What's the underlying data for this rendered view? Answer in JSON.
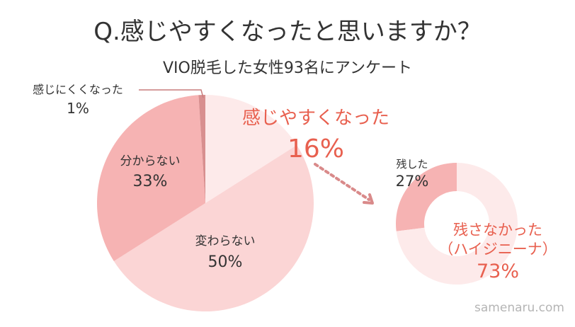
{
  "title": "Q.感じやすくなったと思いますか？",
  "subtitle": "VIO脱毛した女性93名にアンケート",
  "watermark": "samenaru.com",
  "colors": {
    "text": "#333333",
    "accent": "#e8604f",
    "arrow": "#d98a8a",
    "leader": "#c97c7c"
  },
  "chart_data": [
    {
      "type": "pie",
      "slices": [
        {
          "name": "感じやすくなった",
          "value": 16,
          "label": "16%",
          "color": "#fdeaea",
          "emphasis": true
        },
        {
          "name": "変わらない",
          "value": 50,
          "label": "50%",
          "color": "#fbd5d5",
          "emphasis": false
        },
        {
          "name": "分からない",
          "value": 33,
          "label": "33%",
          "color": "#f6b3b3",
          "emphasis": false
        },
        {
          "name": "感じにくくなった",
          "value": 1,
          "label": "1%",
          "color": "#d88f8f",
          "emphasis": false
        }
      ]
    },
    {
      "type": "pie",
      "subtype": "donut",
      "breakdown_of": "感じやすくなった",
      "slices": [
        {
          "name": "残した",
          "value": 27,
          "label": "27%",
          "color": "#f6b3b3",
          "emphasis": false
        },
        {
          "name_line1": "残さなかった",
          "name_line2": "（ハイジニーナ）",
          "value": 73,
          "label": "73%",
          "color": "#fdeaea",
          "emphasis": true
        }
      ]
    }
  ]
}
